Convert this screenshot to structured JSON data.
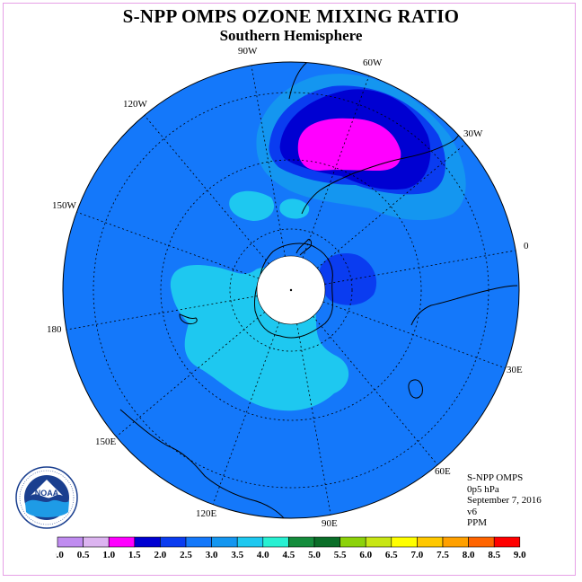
{
  "title": "S-NPP OMPS OZONE MIXING RATIO",
  "subtitle": "Southern Hemisphere",
  "longitude_labels": [
    "90W",
    "60W",
    "30W",
    "0",
    "30E",
    "60E",
    "90E",
    "120E",
    "150E",
    "180",
    "150W",
    "120W"
  ],
  "info": {
    "instrument": "S-NPP OMPS",
    "level": "0p5 hPa",
    "date": "September 7, 2016",
    "version": "v6",
    "units": "PPM"
  },
  "logo_text": "NOAA",
  "colorbar": {
    "ticks": [
      "0.0",
      "0.5",
      "1.0",
      "1.5",
      "2.0",
      "2.5",
      "3.0",
      "3.5",
      "4.0",
      "4.5",
      "5.0",
      "5.5",
      "6.0",
      "6.5",
      "7.0",
      "7.5",
      "8.0",
      "8.5",
      "9.0"
    ],
    "colors": [
      "#c08cf0",
      "#dcb4f0",
      "#ff00ff",
      "#0000d2",
      "#0a3cf0",
      "#1478fa",
      "#1496f0",
      "#1ec8f0",
      "#28f0d2",
      "#148c3c",
      "#0a6e28",
      "#8cd20a",
      "#c8e614",
      "#ffff00",
      "#ffc800",
      "#ffa000",
      "#ff6400",
      "#ff0000",
      "#8c5a3c"
    ]
  },
  "map_colors": {
    "background_level": "#1478fa",
    "low_level": "#1ec8f0",
    "high_level_1": "#1496f0",
    "high_level_2": "#0a3cf0",
    "high_level_3": "#0000d2",
    "max_level": "#ff00ff"
  }
}
